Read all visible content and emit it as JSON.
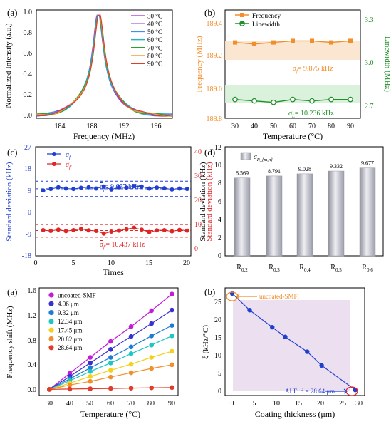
{
  "colors": {
    "c30": "#b84dd6",
    "c40": "#8a3fd1",
    "c50": "#3f8ff0",
    "c60": "#27b4b3",
    "c70": "#2ca02c",
    "c80": "#f2a02e",
    "c90": "#e03c2a",
    "freq": "#f28e2b",
    "lw": "#1f8f2a",
    "blue": "#1f3fd1",
    "red": "#e02424",
    "bar": "#b7b9c4",
    "s0": "#c51bd6",
    "s1": "#3a2fd0",
    "s2": "#1f7bd8",
    "s3": "#1fc7c2",
    "s4": "#f2d21a",
    "s5": "#f28e2b",
    "s6": "#e03c2a"
  },
  "panel_a": {
    "label": "(a)",
    "legend": [
      "30 °C",
      "40 °C",
      "50 °C",
      "60 °C",
      "70 °C",
      "80 °C",
      "90 °C"
    ],
    "yticks": [
      "0.0",
      "0.2",
      "0.4",
      "0.6",
      "0.8",
      "1.0"
    ],
    "xticks": [
      "184",
      "188",
      "192",
      "196"
    ]
  },
  "panel_b": {
    "label": "(b)",
    "legend_freq": "Frequency",
    "legend_lw": "Linewidth",
    "sigma_f_text": "σ",
    "sigma_f_sub": "f",
    "sigma_f_val": "= 9.875 kHz",
    "sigma_l_sub": "L",
    "sigma_l_val": "= 10.236 kHz",
    "yticks_left": [
      "188.8",
      "189.0",
      "189.2",
      "189.4"
    ],
    "yticks_right": [
      "2.7",
      "3.0",
      "3.3"
    ],
    "xticks": [
      "30",
      "40",
      "50",
      "60",
      "70",
      "80",
      "90"
    ]
  },
  "panel_c": {
    "label": "(c)",
    "legend_blue_sub": "f",
    "legend_red_sub": "f'",
    "mean_blue": "= 9.677 kHz",
    "mean_red": "= 10.437 kHz",
    "yticks_left": [
      "-18",
      "-9",
      "0",
      "9",
      "18",
      "27"
    ],
    "yticks_right": [
      "0",
      "10",
      "20",
      "30",
      "40"
    ],
    "xticks": [
      "0",
      "5",
      "10",
      "15",
      "20"
    ]
  },
  "panel_d": {
    "label": "(d)",
    "legend_sub": "R_{m,n}",
    "yticks": [
      "0",
      "2",
      "4",
      "6",
      "8",
      "10",
      "12"
    ],
    "subs": [
      "0.2",
      "0.3",
      "0.4",
      "0.5",
      "0.6"
    ],
    "bar_labels": [
      "8.569",
      "8.791",
      "9.028",
      "9.332",
      "9.677"
    ]
  },
  "panel_a2": {
    "label": "(a)",
    "legend": [
      "uncoated-SMF",
      "4.06 μm",
      "9.32 μm",
      "12.34 μm",
      "17.45 μm",
      "20.82 μm",
      "28.64 μm"
    ],
    "yticks": [
      "0.0",
      "0.4",
      "0.8",
      "1.2",
      "1.6"
    ],
    "xticks": [
      "30",
      "40",
      "50",
      "60",
      "70",
      "80",
      "90"
    ]
  },
  "panel_b2": {
    "label": "(b)",
    "yticks": [
      "0",
      "5",
      "10",
      "15",
      "20",
      "25"
    ],
    "xticks": [
      "0",
      "5",
      "10",
      "15",
      "20",
      "25",
      "30"
    ],
    "ann1": "uncoated-SMF:",
    "ann2": "ALF:  d = 28.64 μm"
  },
  "chart_data": [
    {
      "type": "line",
      "xlabel": "Frequency (MHz)",
      "ylabel": "Normalized Intensity (a.u.)",
      "xlim": [
        181.5,
        198.5
      ],
      "ylim": [
        0,
        1.05
      ],
      "series": [
        {
          "name": "30 °C",
          "peak": 189.2
        },
        {
          "name": "40 °C",
          "peak": 189.22
        },
        {
          "name": "50 °C",
          "peak": 189.25
        },
        {
          "name": "60 °C",
          "peak": 189.28
        },
        {
          "name": "70 °C",
          "peak": 189.3
        },
        {
          "name": "80 °C",
          "peak": 189.33
        },
        {
          "name": "90 °C",
          "peak": 189.36
        }
      ]
    },
    {
      "type": "line",
      "xlabel": "Temperature (°C)",
      "ylabel": "Frequency (MHz)",
      "ylabel_right": "Linewidth (MHz)",
      "x": [
        30,
        40,
        50,
        60,
        70,
        80,
        90
      ],
      "ylim": [
        188.75,
        189.45
      ],
      "ylim_right": [
        2.6,
        3.35
      ],
      "series": [
        {
          "name": "Frequency",
          "axis": "left",
          "values": [
            189.24,
            189.23,
            189.24,
            189.25,
            189.25,
            189.24,
            189.25
          ]
        },
        {
          "name": "Linewidth",
          "axis": "right",
          "values": [
            2.73,
            2.72,
            2.71,
            2.73,
            2.72,
            2.73,
            2.73
          ]
        }
      ]
    },
    {
      "type": "line",
      "xlabel": "Times",
      "ylabel": "Standard deviation (kHz)",
      "ylabel_right": "Standard deviation (kHz)",
      "xlim": [
        0,
        20.5
      ],
      "ylim": [
        -18,
        27
      ],
      "ylim_right": [
        0,
        45
      ],
      "x": [
        1,
        2,
        3,
        4,
        5,
        6,
        7,
        8,
        9,
        10,
        11,
        12,
        13,
        14,
        15,
        16,
        17,
        18,
        19,
        20
      ],
      "series": [
        {
          "name": "σf",
          "axis": "left",
          "values": [
            9.0,
            9.6,
            10.3,
            9.8,
            9.6,
            10.1,
            10.3,
            9.8,
            10.6,
            9.4,
            10.3,
            10.2,
            10.8,
            10.6,
            9.8,
            10.2,
            9.9,
            9.4,
            9.8,
            9.6
          ]
        },
        {
          "name": "σf'",
          "axis": "right",
          "values": [
            10.6,
            10.3,
            10.8,
            10.2,
            10.6,
            11.1,
            10.5,
            10.3,
            9.2,
            10.0,
            10.4,
            11.0,
            11.6,
            10.8,
            9.8,
            10.5,
            10.6,
            10.1,
            10.7,
            10.4
          ]
        }
      ],
      "hlines_left": [
        12.8,
        9.677,
        6.5
      ],
      "hlines_right": [
        12.9,
        10.437,
        7.7
      ]
    },
    {
      "type": "bar",
      "ylabel": "Standard deviation (kHz)",
      "categories": [
        "R0.2",
        "R0.3",
        "R0.4",
        "R0.5",
        "R0.6"
      ],
      "values": [
        8.569,
        8.791,
        9.028,
        9.332,
        9.677
      ],
      "ylim": [
        0,
        12
      ]
    },
    {
      "type": "line",
      "xlabel": "Temperature (°C)",
      "ylabel": "Frequency shift (MHz)",
      "x": [
        30,
        40,
        50,
        60,
        70,
        80,
        90
      ],
      "xlim": [
        25,
        93
      ],
      "ylim": [
        -0.1,
        1.65
      ],
      "series": [
        {
          "name": "uncoated-SMF",
          "values": [
            0,
            0.26,
            0.52,
            0.78,
            1.02,
            1.28,
            1.55
          ]
        },
        {
          "name": "4.06 μm",
          "values": [
            0,
            0.21,
            0.43,
            0.65,
            0.86,
            1.07,
            1.29
          ]
        },
        {
          "name": "9.32 μm",
          "values": [
            0,
            0.17,
            0.35,
            0.52,
            0.69,
            0.87,
            1.04
          ]
        },
        {
          "name": "12.34 μm",
          "values": [
            0,
            0.14,
            0.29,
            0.43,
            0.58,
            0.72,
            0.87
          ]
        },
        {
          "name": "17.45 μm",
          "values": [
            0,
            0.1,
            0.21,
            0.31,
            0.41,
            0.52,
            0.62
          ]
        },
        {
          "name": "20.82 μm",
          "values": [
            0,
            0.07,
            0.13,
            0.2,
            0.27,
            0.34,
            0.4
          ]
        },
        {
          "name": "28.64 μm",
          "values": [
            0,
            0.005,
            0.01,
            0.015,
            0.02,
            0.025,
            0.03
          ]
        }
      ]
    },
    {
      "type": "line",
      "xlabel": "Coating thickness (μm)",
      "ylabel": "ξ (kHz/°C)",
      "xlim": [
        -1.5,
        30
      ],
      "ylim": [
        -1.5,
        27.5
      ],
      "x": [
        0,
        4.06,
        9.32,
        12.34,
        17.45,
        20.82,
        28.64
      ],
      "values": [
        26.0,
        21.5,
        16.9,
        14.3,
        10.3,
        6.6,
        0.0
      ]
    }
  ]
}
